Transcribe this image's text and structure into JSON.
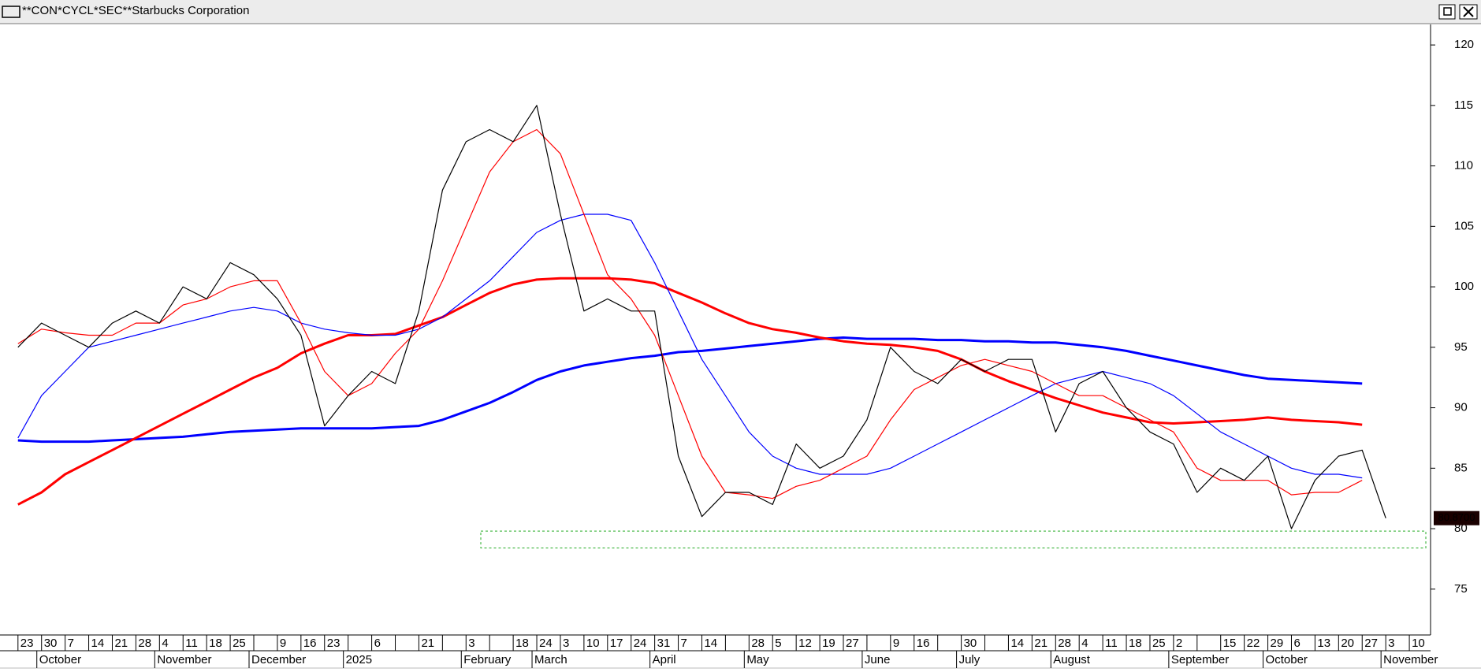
{
  "chart_data": {
    "type": "line",
    "title": "**CON*CYCL*SEC**Starbucks Corporation",
    "categories": [
      "23",
      "30",
      "7",
      "14",
      "21",
      "28",
      "4",
      "11",
      "18",
      "25",
      null,
      "9",
      "16",
      "23",
      null,
      "6",
      null,
      "21",
      null,
      "3",
      null,
      "18",
      "24",
      "3",
      "10",
      "17",
      "24",
      "31",
      "7",
      "14",
      null,
      "28",
      "5",
      "12",
      "19",
      "27",
      null,
      "9",
      "16",
      null,
      "30",
      null,
      "14",
      "21",
      "28",
      "4",
      "11",
      "18",
      "25",
      "2",
      null,
      "15",
      "22",
      "29",
      "6",
      "13",
      "20",
      "27",
      "3",
      "10"
    ],
    "month_labels": [
      null,
      "October",
      null,
      null,
      null,
      null,
      "November",
      null,
      null,
      null,
      "December",
      null,
      null,
      null,
      "2025",
      null,
      null,
      null,
      null,
      "February",
      null,
      null,
      "March",
      null,
      null,
      null,
      null,
      "April",
      null,
      null,
      null,
      "May",
      null,
      null,
      null,
      null,
      "June",
      null,
      null,
      null,
      "July",
      null,
      null,
      null,
      "August",
      null,
      null,
      null,
      null,
      "September",
      null,
      null,
      null,
      "October",
      null,
      null,
      null,
      null,
      "November",
      null
    ],
    "series": [
      {
        "color": "#0000ff",
        "width": 3,
        "values": [
          87.3,
          87.2,
          87.2,
          87.2,
          87.3,
          87.4,
          87.5,
          87.6,
          87.8,
          88,
          88.1,
          88.2,
          88.3,
          88.3,
          88.3,
          88.3,
          88.4,
          88.5,
          89,
          89.7,
          90.4,
          91.3,
          92.3,
          93,
          93.5,
          93.8,
          94.1,
          94.3,
          94.6,
          94.7,
          94.9,
          95.1,
          95.3,
          95.5,
          95.7,
          95.8,
          95.7,
          95.7,
          95.7,
          95.6,
          95.6,
          95.5,
          95.5,
          95.4,
          95.4,
          95.2,
          95,
          94.7,
          94.3,
          93.9,
          93.5,
          93.1,
          92.7,
          92.4,
          92.3,
          92.2,
          92.1,
          92,
          null,
          null
        ]
      },
      {
        "color": "#ff0000",
        "width": 3,
        "values": [
          82,
          83,
          84.5,
          85.5,
          86.5,
          87.5,
          88.5,
          89.5,
          90.5,
          91.5,
          92.5,
          93.3,
          94.5,
          95.3,
          96,
          96,
          96.1,
          96.8,
          97.5,
          98.5,
          99.5,
          100.2,
          100.6,
          100.7,
          100.7,
          100.7,
          100.6,
          100.3,
          99.5,
          98.7,
          97.8,
          97,
          96.5,
          96.2,
          95.8,
          95.5,
          95.3,
          95.2,
          95,
          94.7,
          94,
          93,
          92.2,
          91.5,
          90.8,
          90.2,
          89.6,
          89.2,
          88.8,
          88.7,
          88.8,
          88.9,
          89,
          89.2,
          89,
          88.9,
          88.8,
          88.6,
          null,
          null
        ]
      },
      {
        "color": "#0000ff",
        "width": 1.2,
        "values": [
          87.5,
          91,
          93,
          95,
          95.5,
          96,
          96.5,
          97,
          97.5,
          98,
          98.3,
          98,
          97,
          96.5,
          96.2,
          96,
          96,
          96.5,
          97.5,
          99,
          100.5,
          102.5,
          104.5,
          105.5,
          106,
          106,
          105.5,
          102,
          98,
          94,
          91,
          88,
          86,
          85,
          84.5,
          84.5,
          84.5,
          85,
          86,
          87,
          88,
          89,
          90,
          91,
          92,
          92.5,
          93,
          92.5,
          92,
          91,
          89.5,
          88,
          87,
          86,
          85,
          84.5,
          84.5,
          84.2,
          null,
          null
        ]
      },
      {
        "color": "#ff0000",
        "width": 1.2,
        "values": [
          95.3,
          96.5,
          96.2,
          96,
          96,
          97,
          97,
          98.5,
          99,
          100,
          100.5,
          100.5,
          97,
          93,
          91,
          92,
          94.5,
          96.5,
          100.5,
          105,
          109.5,
          112,
          113,
          111,
          106,
          101,
          99,
          96,
          91,
          86,
          83,
          82.8,
          82.5,
          83.5,
          84,
          85,
          86,
          89,
          91.5,
          92.5,
          93.5,
          94,
          93.5,
          93,
          92,
          91,
          91,
          90,
          89,
          88,
          85,
          84,
          84,
          84,
          82.8,
          83,
          83,
          84,
          null,
          null
        ]
      },
      {
        "color": "#000000",
        "width": 1.2,
        "values": [
          95,
          97,
          96,
          95,
          97,
          98,
          97,
          100,
          99,
          102,
          101,
          99,
          96,
          88.5,
          91,
          93,
          92,
          98,
          108,
          112,
          113,
          112,
          115,
          106,
          98,
          99,
          98,
          98,
          86,
          81,
          83,
          83,
          82,
          87,
          85,
          86,
          89,
          95,
          93,
          92,
          94,
          93,
          94,
          94,
          88,
          92,
          93,
          90,
          88,
          87,
          83,
          85,
          84,
          86,
          80,
          84,
          86,
          86.5,
          80.87,
          null
        ]
      }
    ],
    "last_value": {
      "value": 80.87,
      "label": "80.8700"
    },
    "support_zone": [
      78.4,
      79.8
    ],
    "ylim": [
      71.6,
      121.7
    ],
    "yticks": [
      75,
      80,
      85,
      90,
      95,
      100,
      105,
      110,
      115,
      120
    ]
  }
}
